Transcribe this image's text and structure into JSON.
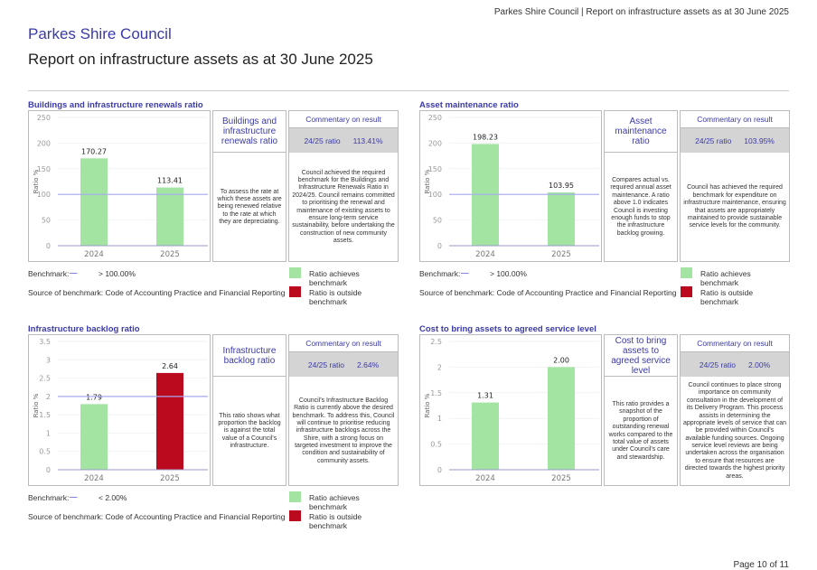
{
  "header": {
    "running_title": "Parkes Shire Council | Report on infrastructure assets as at 30 June 2025",
    "council": "Parkes Shire Council",
    "report_title": "Report on infrastructure assets as at 30 June 2025",
    "page": "Page 10 of 11"
  },
  "colors": {
    "achieves": "#a3e4a3",
    "outside": "#bb0a1e",
    "benchmark_line": "#a8a8f0",
    "accent": "#3a3aa8"
  },
  "panels": [
    {
      "title": "Buildings and infrastructure renewals ratio",
      "name": "Buildings and infrastructure renewals ratio",
      "description": "To assess the rate at which these assets are being renewed relative to the rate at which they are depreciating.",
      "commentary_header": "Commentary on result",
      "ratio_label": "24/25 ratio",
      "ratio_value": "113.41%",
      "commentary": "Council achieved the required benchmark for the Buildings and Infrastructure Renewals Ratio in 2024/25. Council remains committed to prioritising the renewal and maintenance of existing assets to ensure long-term service sustainability, before undertaking the construction of new community assets.",
      "benchmark_label": "Benchmark:",
      "benchmark_value": "> 100.00%",
      "legend_achieves": "Ratio achieves benchmark",
      "legend_outside": "Ratio is outside benchmark",
      "source": "Source of benchmark: Code of Accounting Practice and Financial Reporting"
    },
    {
      "title": "Asset maintenance ratio",
      "name": "Asset maintenance ratio",
      "description": "Compares actual vs. required annual asset maintenance. A ratio above 1.0 indicates Council is investing enough funds to stop the infrastructure backlog growing.",
      "commentary_header": "Commentary on result",
      "ratio_label": "24/25 ratio",
      "ratio_value": "103.95%",
      "commentary": "Council has achieved the required benchmark for expenditure on infrastructure maintenance, ensuring that assets are appropriately maintained to provide sustainable service levels for the community.",
      "benchmark_label": "Benchmark:",
      "benchmark_value": "> 100.00%",
      "legend_achieves": "Ratio achieves benchmark",
      "legend_outside": "Ratio is outside benchmark",
      "source": "Source of benchmark: Code of Accounting Practice and Financial Reporting"
    },
    {
      "title": "Infrastructure backlog ratio",
      "name": "Infrastructure backlog ratio",
      "description": "This ratio shows what proportion the backlog is against the total value of a Council's infrastructure.",
      "commentary_header": "Commentary on result",
      "ratio_label": "24/25 ratio",
      "ratio_value": "2.64%",
      "commentary": "Council's Infrastructure Backlog Ratio is currently above the desired benchmark. To address this, Council will continue to prioritise reducing infrastructure backlogs across the Shire, with a strong focus on targeted investment to improve the condition and sustainability of community assets.",
      "benchmark_label": "Benchmark:",
      "benchmark_value": "< 2.00%",
      "legend_achieves": "Ratio achieves benchmark",
      "legend_outside": "Ratio is outside benchmark",
      "source": "Source of benchmark: Code of Accounting Practice and Financial Reporting"
    },
    {
      "title": "Cost to bring assets to agreed service level",
      "name": "Cost to bring assets to agreed service level",
      "description": "This ratio provides a snapshot of the proportion of outstanding renewal works compared to the total value of assets under Council's care and stewardship.",
      "commentary_header": "Commentary on result",
      "ratio_label": "24/25 ratio",
      "ratio_value": "2.00%",
      "commentary": "Council continues to place strong importance on community consultation in the development of its Delivery Program. This process assists in determining the appropriate levels of service that can be provided within Council's available funding sources. Ongoing service level reviews are being undertaken across the organisation to ensure that resources are directed towards the highest priority areas."
    }
  ],
  "chart_data": [
    {
      "type": "bar",
      "ylabel": "Ratio %",
      "categories": [
        "2024",
        "2025"
      ],
      "values": [
        170.27,
        113.41
      ],
      "labels": [
        "170.27",
        "113.41"
      ],
      "status": [
        "achieves",
        "achieves"
      ],
      "ylim": [
        0,
        250
      ],
      "yticks": [
        "0",
        "50",
        "100",
        "150",
        "200",
        "250"
      ],
      "benchmark": 100
    },
    {
      "type": "bar",
      "ylabel": "Ratio %",
      "categories": [
        "2024",
        "2025"
      ],
      "values": [
        198.23,
        103.95
      ],
      "labels": [
        "198.23",
        "103.95"
      ],
      "status": [
        "achieves",
        "achieves"
      ],
      "ylim": [
        0,
        250
      ],
      "yticks": [
        "0",
        "50",
        "100",
        "150",
        "200",
        "250"
      ],
      "benchmark": 100
    },
    {
      "type": "bar",
      "ylabel": "Ratio %",
      "categories": [
        "2024",
        "2025"
      ],
      "values": [
        1.79,
        2.64
      ],
      "labels": [
        "1.79",
        "2.64"
      ],
      "status": [
        "achieves",
        "outside"
      ],
      "ylim": [
        0,
        3.5
      ],
      "yticks": [
        "0",
        "0.5",
        "1",
        "1.5",
        "2",
        "2.5",
        "3",
        "3.5"
      ],
      "benchmark": 2
    },
    {
      "type": "bar",
      "ylabel": "Ratio %",
      "categories": [
        "2024",
        "2025"
      ],
      "values": [
        1.31,
        2.0
      ],
      "labels": [
        "1.31",
        "2.00"
      ],
      "status": [
        "achieves",
        "achieves"
      ],
      "ylim": [
        0,
        2.5
      ],
      "yticks": [
        "0",
        "0.5",
        "1",
        "1.5",
        "2",
        "2.5"
      ],
      "benchmark": null
    }
  ]
}
